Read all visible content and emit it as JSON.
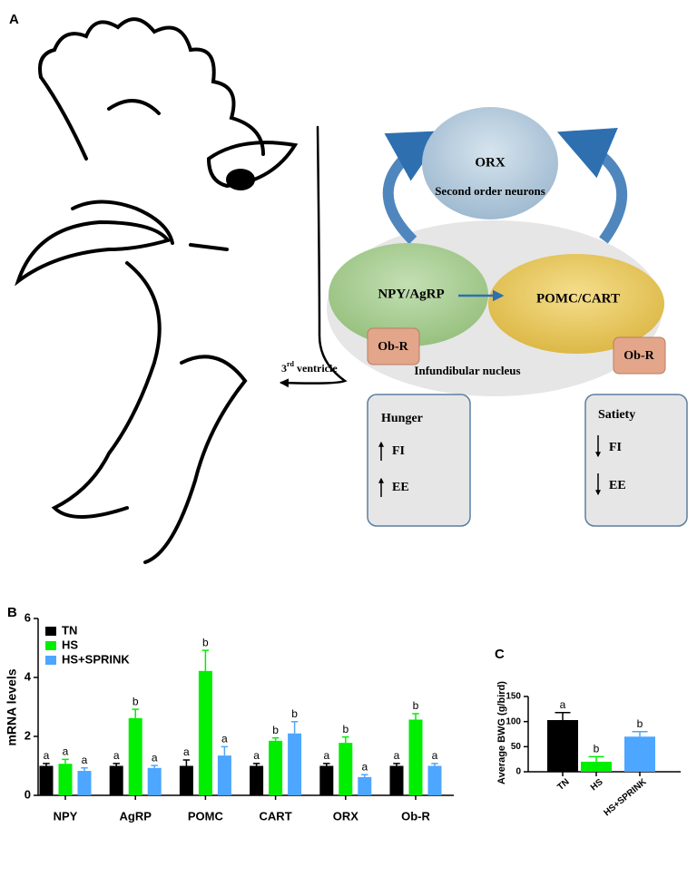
{
  "diagram": {
    "panel_label": "A",
    "top": {
      "label": "ORX",
      "caption": "Second order neurons"
    },
    "left_node": "NPY/AgRP",
    "right_node": "POMC/CART",
    "receptor_left": "Ob-R",
    "receptor_right": "Ob-R",
    "ventricle": {
      "number": "3",
      "superscript": "rd",
      "text": "ventricle"
    },
    "nucleus": "Infundibular nucleus",
    "left_box": {
      "title": "Hunger",
      "items": [
        "FI",
        "EE"
      ]
    },
    "right_box": {
      "title": "Satiety",
      "items": [
        "FI",
        "EE"
      ]
    }
  },
  "chart_data": [
    {
      "type": "bar",
      "panel_label": "B",
      "ylabel": "mRNA levels",
      "categories": [
        "NPY",
        "AgRP",
        "POMC",
        "CART",
        "ORX",
        "Ob-R"
      ],
      "series": [
        {
          "name": "TN",
          "color": "#000000",
          "values": [
            1.0,
            1.0,
            1.0,
            1.0,
            1.0,
            1.0
          ],
          "errors": [
            0.08,
            0.08,
            0.2,
            0.08,
            0.08,
            0.08
          ],
          "significance": [
            "a",
            "a",
            "a",
            "a",
            "a",
            "a"
          ]
        },
        {
          "name": "HS",
          "color": "#00ee00",
          "values": [
            1.07,
            2.62,
            4.22,
            1.85,
            1.78,
            2.57
          ],
          "errors": [
            0.15,
            0.3,
            0.7,
            0.1,
            0.2,
            0.2
          ],
          "significance": [
            "a",
            "b",
            "b",
            "b",
            "b",
            "b"
          ]
        },
        {
          "name": "HS+SPRINK",
          "color": "#4da6ff",
          "values": [
            0.83,
            0.93,
            1.35,
            2.1,
            0.62,
            1.0
          ],
          "errors": [
            0.1,
            0.08,
            0.3,
            0.4,
            0.08,
            0.08
          ],
          "significance": [
            "a",
            "a",
            "a",
            "b",
            "a",
            "a"
          ]
        }
      ],
      "ylim": [
        0,
        6
      ],
      "yticks": [
        0,
        2,
        4,
        6
      ],
      "legend": "top-left"
    },
    {
      "type": "bar",
      "panel_label": "C",
      "ylabel": "Average BWG (g/bird)",
      "categories": [
        "TN",
        "HS",
        "HS+SPRINK"
      ],
      "values": [
        103,
        20,
        70
      ],
      "errors": [
        15,
        10,
        10
      ],
      "colors": [
        "#000000",
        "#00ee00",
        "#4da6ff"
      ],
      "significance": [
        "a",
        "b",
        "b"
      ],
      "ylim": [
        0,
        150
      ],
      "yticks": [
        0,
        50,
        100,
        150
      ]
    }
  ]
}
